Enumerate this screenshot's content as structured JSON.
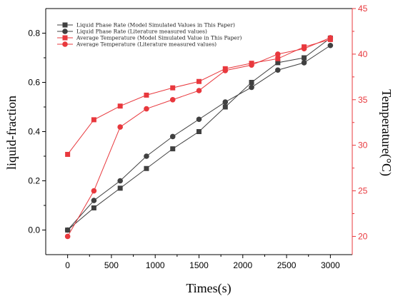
{
  "chart_data": {
    "type": "line",
    "xlabel": "Times(s)",
    "ylabel_left": "liquid-fraction",
    "ylabel_right": "Temperature(°C)",
    "xlim": [
      -250,
      3250
    ],
    "ylim_left": [
      -0.1,
      0.9
    ],
    "ylim_right": [
      18,
      45
    ],
    "x_ticks": [
      0,
      500,
      1000,
      1500,
      2000,
      2500,
      3000
    ],
    "y_ticks_left": [
      0.0,
      0.2,
      0.4,
      0.6,
      0.8
    ],
    "y_ticks_right": [
      20,
      25,
      30,
      35,
      40,
      45
    ],
    "grid": false,
    "legend_position": "top-left",
    "series": [
      {
        "name": "Liquid Phase Rate (Model Simulated Values in This Paper)",
        "axis": "left",
        "marker": "square",
        "color": "#404040",
        "x": [
          0,
          300,
          600,
          900,
          1200,
          1500,
          1800,
          2100,
          2400,
          2700,
          3000
        ],
        "y": [
          0.0,
          0.09,
          0.17,
          0.25,
          0.33,
          0.4,
          0.5,
          0.6,
          0.68,
          0.7,
          0.78
        ]
      },
      {
        "name": "Liquid Phase Rate (Literature measured values)",
        "axis": "left",
        "marker": "circle",
        "color": "#404040",
        "x": [
          0,
          300,
          600,
          900,
          1200,
          1500,
          1800,
          2100,
          2400,
          2700,
          3000
        ],
        "y": [
          0.0,
          0.12,
          0.2,
          0.3,
          0.38,
          0.45,
          0.52,
          0.58,
          0.65,
          0.68,
          0.75
        ]
      },
      {
        "name": "Average Temperature (Model Simulated Value in This Paper)",
        "axis": "right",
        "marker": "square",
        "color": "#e8383d",
        "x": [
          0,
          300,
          600,
          900,
          1200,
          1500,
          1800,
          2100,
          2400,
          2700,
          3000
        ],
        "y": [
          29.0,
          32.8,
          34.3,
          35.5,
          36.3,
          37.0,
          38.4,
          39.0,
          39.5,
          40.8,
          41.6
        ]
      },
      {
        "name": "Average Temperature (Literature measured values)",
        "axis": "right",
        "marker": "circle",
        "color": "#e8383d",
        "x": [
          0,
          300,
          600,
          900,
          1200,
          1500,
          1800,
          2100,
          2400,
          2700,
          3000
        ],
        "y": [
          20.0,
          25.0,
          32.0,
          34.0,
          35.0,
          36.0,
          38.2,
          38.8,
          40.0,
          40.6,
          41.8
        ]
      }
    ]
  },
  "colors": {
    "left_axis": "#000000",
    "right_axis": "#e8383d",
    "overlap_marker": "#b5651d"
  }
}
